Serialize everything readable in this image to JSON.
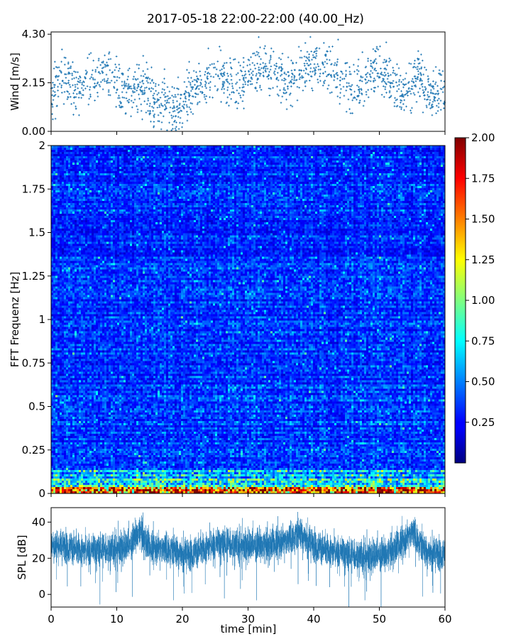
{
  "chart_data": {
    "type": "multi-panel",
    "title": "2017-05-18 22:00-22:00 (40.00_Hz)",
    "xlabel": "time [min]",
    "xlim": [
      0,
      60
    ],
    "xticks": [
      "0",
      "10",
      "20",
      "30",
      "40",
      "50",
      "60"
    ],
    "panels": [
      {
        "name": "wind",
        "type": "scatter",
        "ylabel": "Wind [m/s]",
        "ylim": [
          0,
          4.4
        ],
        "yticks": [
          "0.00",
          "2.15",
          "4.30"
        ],
        "marker_color": "#1f77b4",
        "trend": {
          "t": [
            0,
            2,
            4,
            6,
            8,
            10,
            12,
            14,
            16,
            18,
            20,
            22,
            24,
            26,
            28,
            30,
            32,
            34,
            36,
            38,
            40,
            42,
            44,
            46,
            48,
            50,
            52,
            54,
            56,
            58,
            60
          ],
          "wind": [
            1.6,
            2.4,
            1.8,
            2.3,
            2.7,
            1.9,
            1.6,
            2.0,
            1.4,
            1.0,
            1.2,
            2.0,
            2.3,
            2.4,
            1.9,
            2.5,
            2.9,
            2.6,
            2.1,
            2.7,
            2.9,
            2.8,
            2.5,
            2.0,
            2.3,
            3.0,
            2.2,
            1.7,
            2.6,
            1.5,
            1.8
          ]
        }
      },
      {
        "name": "spectrogram",
        "type": "heatmap",
        "ylabel": "FFT Frequenz [Hz]",
        "ylim": [
          0,
          2
        ],
        "yticks": [
          "0",
          "0.25",
          "0.5",
          "0.75",
          "1",
          "1.25",
          "1.5",
          "1.75",
          "2"
        ],
        "colorbar": {
          "range": [
            0,
            2
          ],
          "ticks": [
            "0.25",
            "0.50",
            "0.75",
            "1.00",
            "1.25",
            "1.50",
            "1.75",
            "2.00"
          ],
          "colormap": "jet"
        }
      },
      {
        "name": "spl",
        "type": "line",
        "ylabel": "SPL [dB]",
        "ylim": [
          -7,
          48
        ],
        "yticks": [
          "0",
          "20",
          "40"
        ],
        "line_color": "#1f77b4",
        "trend": {
          "t": [
            0,
            3,
            6,
            9,
            12,
            13.5,
            15,
            18,
            21,
            24,
            27,
            30,
            33,
            36,
            38,
            40,
            42,
            45,
            48,
            51,
            54,
            55,
            57,
            60
          ],
          "spl": [
            28,
            26,
            24,
            25,
            27,
            35,
            26,
            25,
            22,
            27,
            28,
            27,
            27,
            30,
            34,
            27,
            25,
            22,
            21,
            22,
            30,
            35,
            24,
            22
          ]
        }
      }
    ]
  }
}
